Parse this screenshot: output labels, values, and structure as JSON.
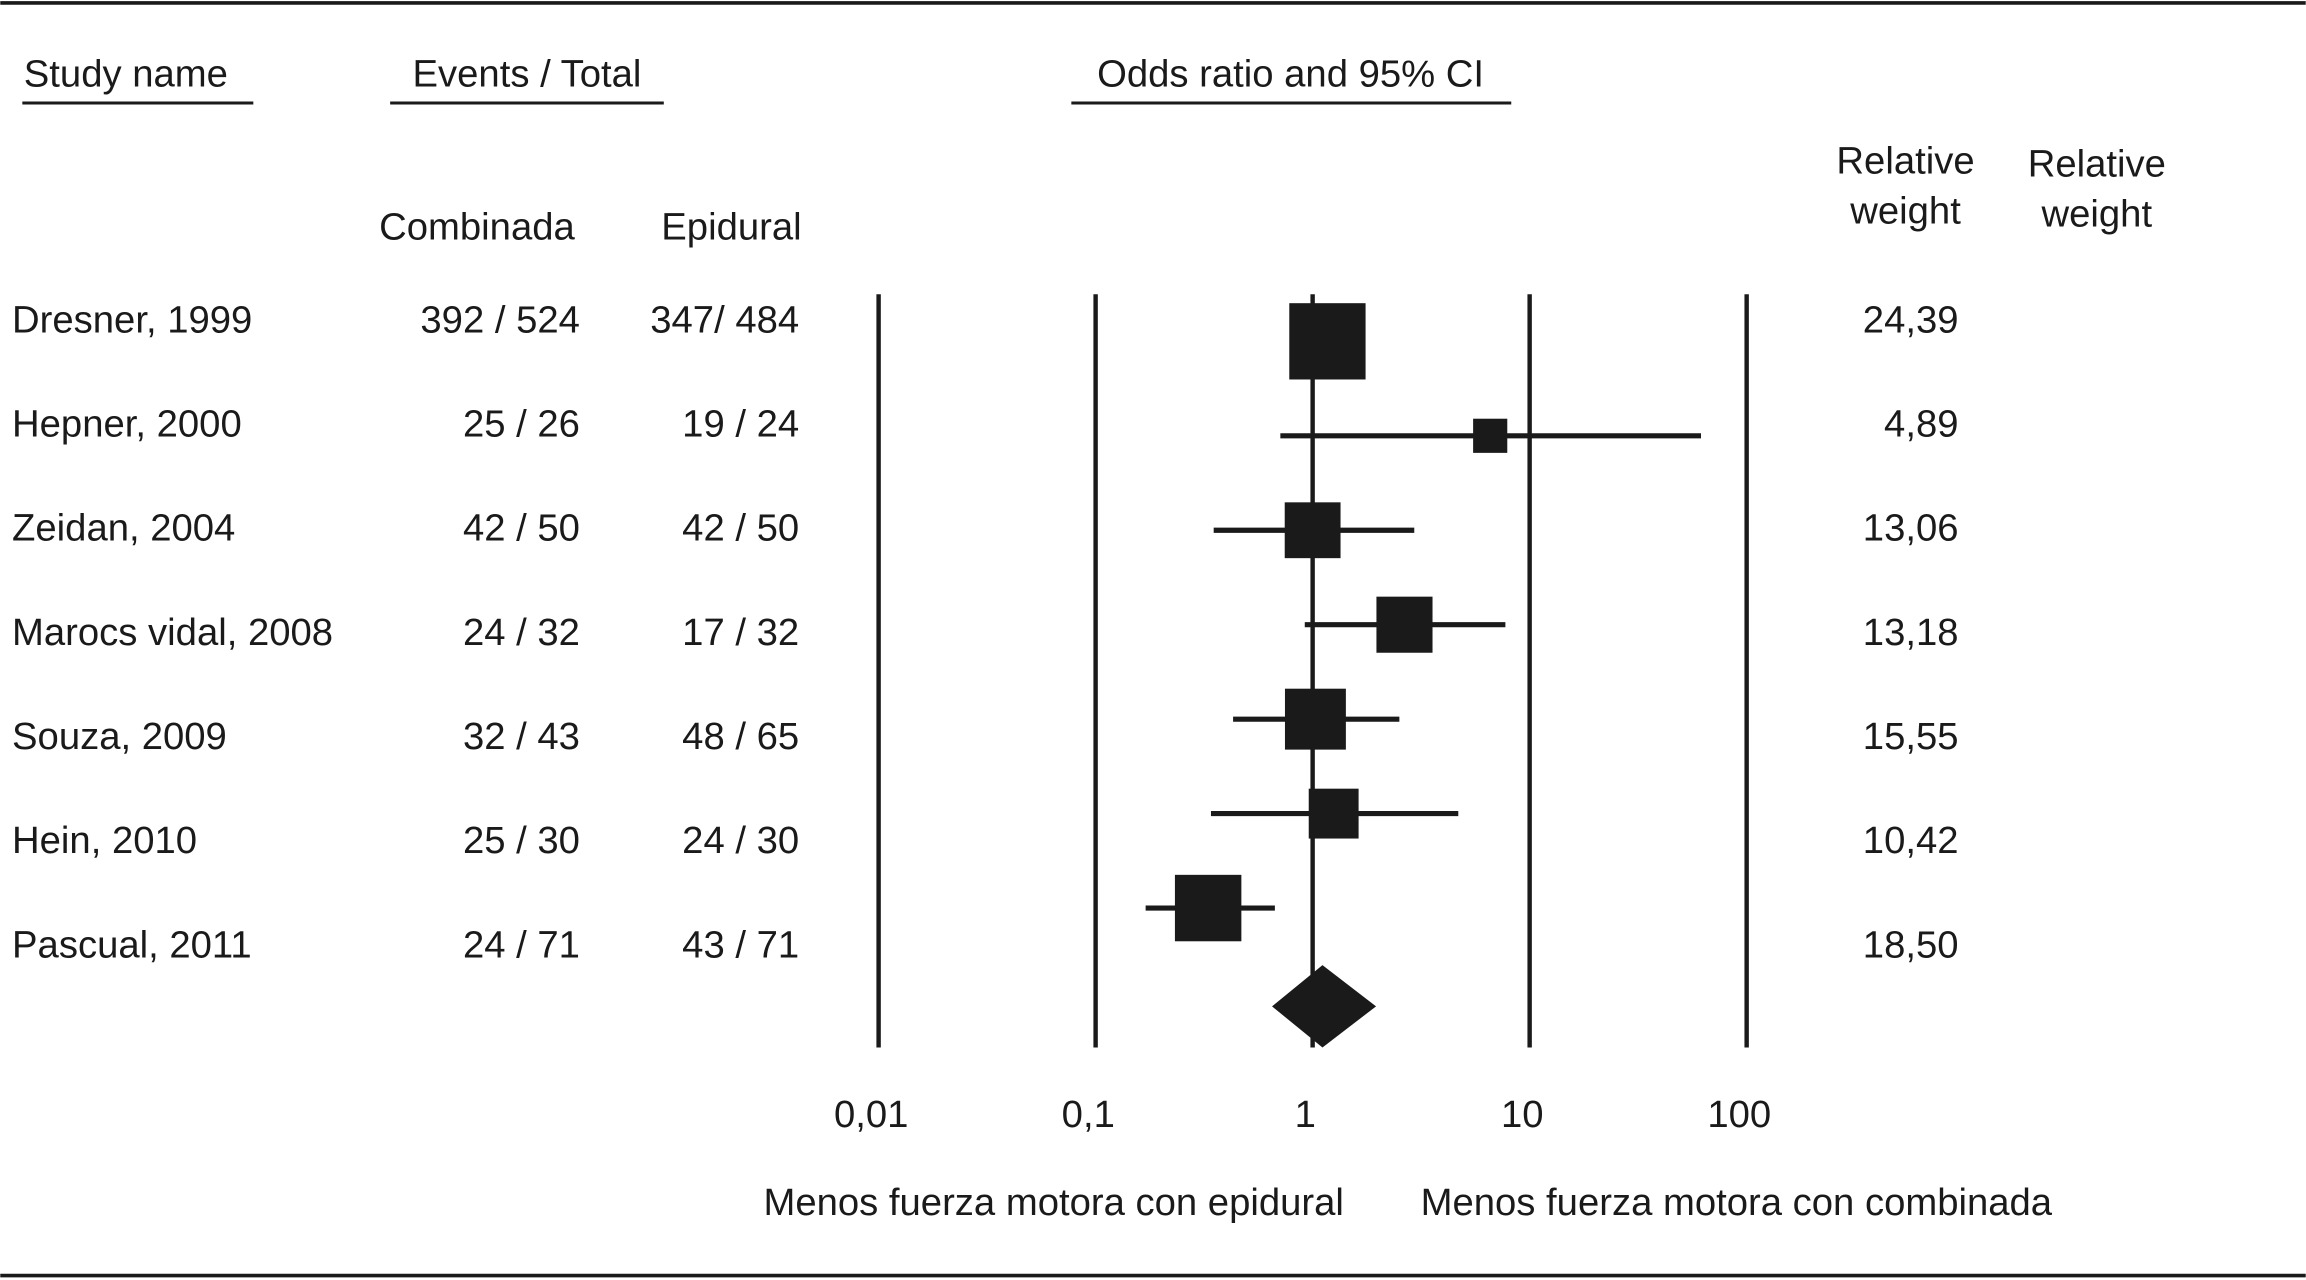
{
  "chart_data": {
    "type": "forest",
    "headers": {
      "study": "Study name",
      "events": "Events / Total",
      "plot": "Odds ratio and 95% CI",
      "group1": "Combinada",
      "group2": "Epidural",
      "weight": [
        [
          "Relative",
          "weight"
        ],
        [
          "Relative",
          "weight"
        ]
      ]
    },
    "studies": [
      "Dresner, 1999",
      "Hepner, 2000",
      "Zeidan, 2004",
      "Marocs vidal, 2008",
      "Souza, 2009",
      "Hein, 2010",
      "Pascual, 2011"
    ],
    "events1": [
      "392 / 524",
      "25 / 26",
      "42 / 50",
      "24 / 32",
      "32 / 43",
      "25 / 30",
      "24 / 71"
    ],
    "events2": [
      "347/ 484",
      "19 / 24",
      "42 / 50",
      "17 / 32",
      "48 / 65",
      "24 / 30",
      "43 / 71"
    ],
    "values": [
      1.17,
      6.58,
      1.0,
      2.65,
      1.03,
      1.25,
      0.33
    ],
    "ci_lower": [
      0.88,
      0.71,
      0.35,
      0.92,
      0.43,
      0.34,
      0.17
    ],
    "ci_upper": [
      1.56,
      61.6,
      2.94,
      7.73,
      2.51,
      4.69,
      0.67
    ],
    "weights": {
      "values": [
        24.39,
        4.89,
        13.06,
        13.18,
        15.55,
        10.42,
        18.5
      ],
      "value_labels": [
        "24,39",
        "4,89",
        "13,06",
        "13,18",
        "15,55",
        "10,42",
        "18,50"
      ]
    },
    "summary": {
      "value": 1.11,
      "lower": 0.65,
      "upper": 1.96
    },
    "xscale": "log",
    "xlim": [
      0.01,
      100
    ],
    "xticks": [
      {
        "value": 0.01,
        "label": "0,01"
      },
      {
        "value": 0.1,
        "label": "0,1"
      },
      1,
      10,
      100
    ],
    "grid": true,
    "color": "#1a1a1a",
    "left_label": "Menos fuerza motora con epidural",
    "right_label": "Menos fuerza motora con combinada"
  }
}
